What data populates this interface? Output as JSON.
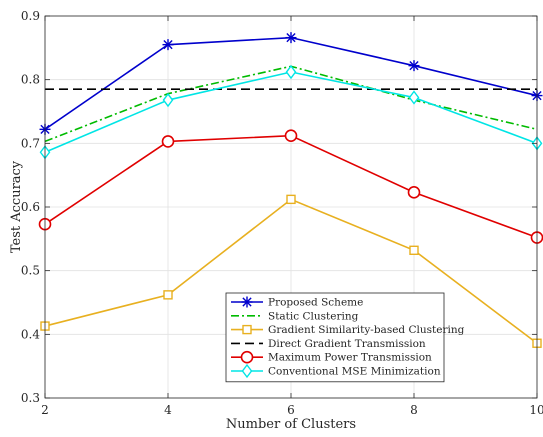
{
  "chart_data": {
    "type": "line",
    "xlabel": "Number of Clusters",
    "ylabel": "Test Accuracy",
    "x": [
      2,
      4,
      6,
      8,
      10
    ],
    "xlim": [
      2,
      10
    ],
    "ylim": [
      0.3,
      0.9
    ],
    "xticks": [
      "2",
      "4",
      "6",
      "8",
      "10"
    ],
    "yticks": [
      "0.3",
      "0.4",
      "0.5",
      "0.6",
      "0.7",
      "0.8",
      "0.9"
    ],
    "grid": true,
    "legend_position": "bottom-right",
    "series": [
      {
        "name": "Proposed Scheme",
        "values": [
          0.722,
          0.855,
          0.866,
          0.822,
          0.775
        ],
        "color": "#0000cc",
        "marker": "asterisk",
        "dash": "solid"
      },
      {
        "name": "Static Clustering",
        "values": [
          0.703,
          0.778,
          0.821,
          0.768,
          0.722
        ],
        "color": "#00bb00",
        "marker": "none",
        "dash": "dashdot"
      },
      {
        "name": "Gradient Similarity-based Clustering",
        "values": [
          0.413,
          0.462,
          0.612,
          0.532,
          0.386
        ],
        "color": "#e8b020",
        "marker": "square",
        "dash": "solid"
      },
      {
        "name": "Direct Gradient Transmission",
        "values": [
          0.785,
          0.785,
          0.785,
          0.785,
          0.785
        ],
        "color": "#000000",
        "marker": "none",
        "dash": "dashed"
      },
      {
        "name": "Maximum Power Transmission",
        "values": [
          0.573,
          0.703,
          0.712,
          0.623,
          0.552
        ],
        "color": "#e00000",
        "marker": "circle",
        "dash": "solid"
      },
      {
        "name": "Conventional MSE Minimization",
        "values": [
          0.686,
          0.768,
          0.812,
          0.772,
          0.7
        ],
        "color": "#00e5e5",
        "marker": "diamond",
        "dash": "solid"
      }
    ]
  }
}
